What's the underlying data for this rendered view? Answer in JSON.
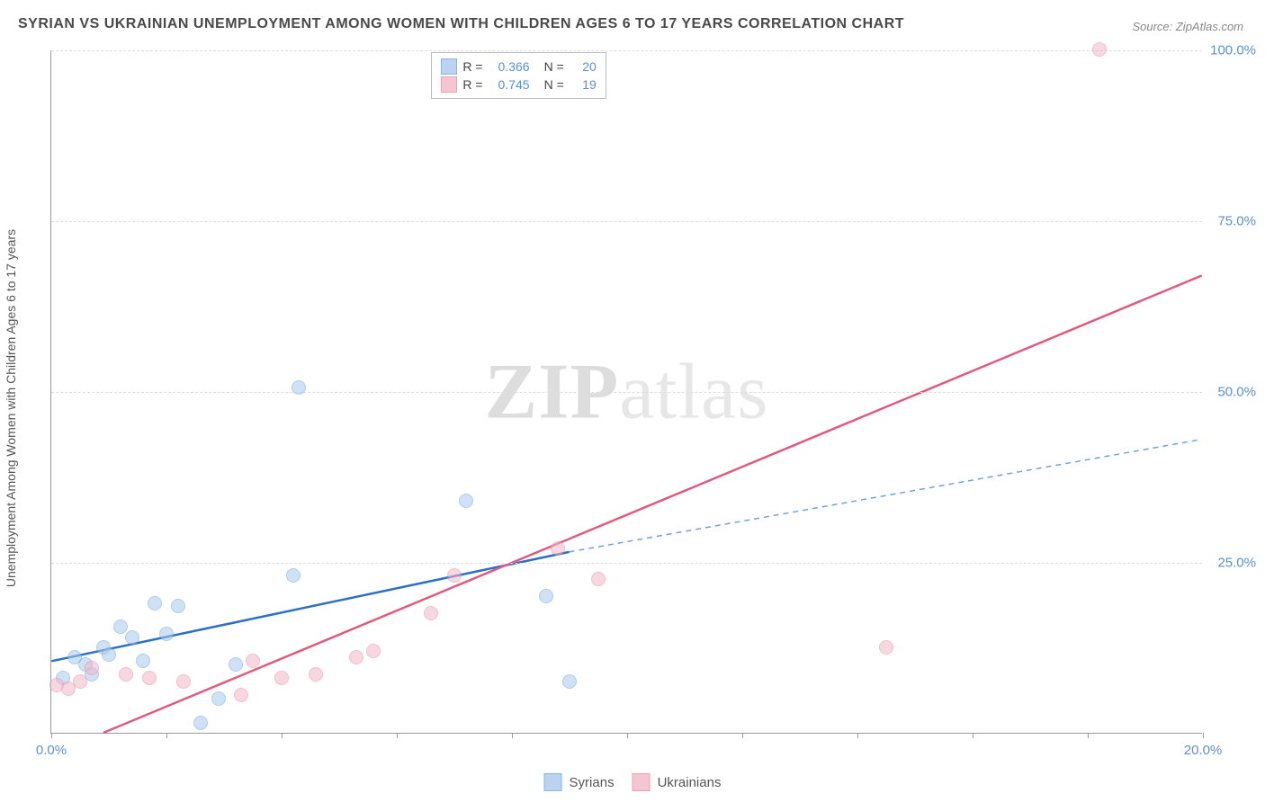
{
  "title": "SYRIAN VS UKRAINIAN UNEMPLOYMENT AMONG WOMEN WITH CHILDREN AGES 6 TO 17 YEARS CORRELATION CHART",
  "source_label": "Source: ZipAtlas.com",
  "y_axis_label": "Unemployment Among Women with Children Ages 6 to 17 years",
  "watermark_zip": "ZIP",
  "watermark_atlas": "atlas",
  "chart": {
    "type": "scatter",
    "background_color": "#ffffff",
    "grid_color": "#dddddd",
    "axis_color": "#999999",
    "xlim": [
      0,
      20
    ],
    "ylim": [
      0,
      100
    ],
    "x_ticks": [
      0,
      2,
      4,
      6,
      8,
      10,
      12,
      14,
      16,
      18,
      20
    ],
    "x_tick_labels": {
      "0": "0.0%",
      "20": "20.0%"
    },
    "y_ticks": [
      25,
      50,
      75,
      100
    ],
    "y_tick_labels": {
      "25": "25.0%",
      "50": "50.0%",
      "75": "75.0%",
      "100": "100.0%"
    },
    "label_fontsize": 15,
    "tick_color": "#5b8fd6",
    "marker_radius": 8,
    "marker_stroke_width": 1.5,
    "series": [
      {
        "name": "Syrians",
        "fill": "#a9c9ec",
        "stroke": "#6fa3dd",
        "fill_opacity": 0.55,
        "r_value": "0.366",
        "n_value": "20",
        "trend": {
          "x1": 0,
          "y1": 10.5,
          "x2": 9.0,
          "y2": 26.5,
          "color": "#2a6fc9",
          "width": 2.5,
          "dash": "none"
        },
        "trend_ext": {
          "x1": 9.0,
          "y1": 26.5,
          "x2": 20.0,
          "y2": 43.0,
          "color": "#6fa3dd",
          "width": 1.5,
          "dash": "6,5"
        },
        "points": [
          {
            "x": 0.2,
            "y": 8.0
          },
          {
            "x": 0.4,
            "y": 11.0
          },
          {
            "x": 0.6,
            "y": 10.0
          },
          {
            "x": 0.7,
            "y": 8.5
          },
          {
            "x": 0.9,
            "y": 12.5
          },
          {
            "x": 1.0,
            "y": 11.5
          },
          {
            "x": 1.2,
            "y": 15.5
          },
          {
            "x": 1.4,
            "y": 14.0
          },
          {
            "x": 1.6,
            "y": 10.5
          },
          {
            "x": 1.8,
            "y": 19.0
          },
          {
            "x": 2.0,
            "y": 14.5
          },
          {
            "x": 2.2,
            "y": 18.5
          },
          {
            "x": 2.6,
            "y": 1.5
          },
          {
            "x": 2.9,
            "y": 5.0
          },
          {
            "x": 3.2,
            "y": 10.0
          },
          {
            "x": 4.2,
            "y": 23.0
          },
          {
            "x": 4.3,
            "y": 50.5
          },
          {
            "x": 7.2,
            "y": 34.0
          },
          {
            "x": 8.6,
            "y": 20.0
          },
          {
            "x": 9.0,
            "y": 7.5
          }
        ]
      },
      {
        "name": "Ukrainians",
        "fill": "#f3b9c7",
        "stroke": "#e78aa5",
        "fill_opacity": 0.55,
        "r_value": "0.745",
        "n_value": "19",
        "trend": {
          "x1": 0.9,
          "y1": 0.0,
          "x2": 20.0,
          "y2": 67.0,
          "color": "#e05a7e",
          "width": 2.5,
          "dash": "none"
        },
        "points": [
          {
            "x": 0.1,
            "y": 7.0
          },
          {
            "x": 0.3,
            "y": 6.5
          },
          {
            "x": 0.5,
            "y": 7.5
          },
          {
            "x": 0.7,
            "y": 9.5
          },
          {
            "x": 1.3,
            "y": 8.5
          },
          {
            "x": 1.7,
            "y": 8.0
          },
          {
            "x": 2.3,
            "y": 7.5
          },
          {
            "x": 3.3,
            "y": 5.5
          },
          {
            "x": 3.5,
            "y": 10.5
          },
          {
            "x": 4.0,
            "y": 8.0
          },
          {
            "x": 4.6,
            "y": 8.5
          },
          {
            "x": 5.3,
            "y": 11.0
          },
          {
            "x": 5.6,
            "y": 12.0
          },
          {
            "x": 6.6,
            "y": 17.5
          },
          {
            "x": 7.0,
            "y": 23.0
          },
          {
            "x": 8.8,
            "y": 27.0
          },
          {
            "x": 9.5,
            "y": 22.5
          },
          {
            "x": 14.5,
            "y": 12.5
          },
          {
            "x": 18.2,
            "y": 100.0
          }
        ]
      }
    ]
  },
  "legend_top": {
    "r_label": "R =",
    "n_label": "N ="
  },
  "legend_bottom": {
    "items": [
      "Syrians",
      "Ukrainians"
    ]
  }
}
